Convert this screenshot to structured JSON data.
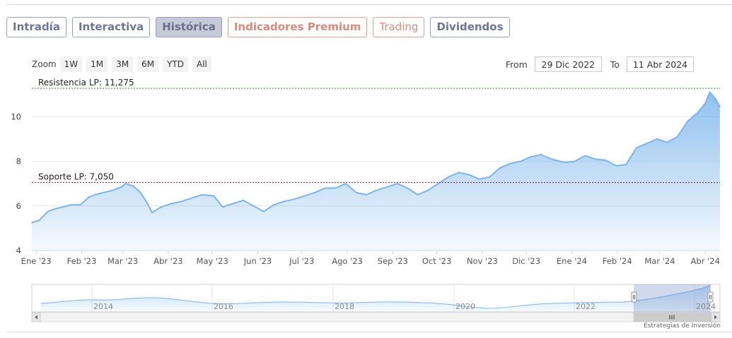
{
  "tabs": [
    {
      "label": "Intradía",
      "style": "normal"
    },
    {
      "label": "Interactiva",
      "style": "normal"
    },
    {
      "label": "Histórica",
      "style": "active"
    },
    {
      "label": "Indicadores Premium",
      "style": "premium"
    },
    {
      "label": "Trading",
      "style": "trading"
    },
    {
      "label": "Dividendos",
      "style": "dividendos"
    }
  ],
  "toolbar": {
    "zoom_label": "Zoom",
    "zoom_buttons": [
      "1W",
      "1M",
      "3M",
      "6M",
      "YTD",
      "All"
    ],
    "from_label": "From",
    "from_value": "29 Dic 2022",
    "to_label": "To",
    "to_value": "11 Abr 2024"
  },
  "credits": "Estrategias de Inversión",
  "colors": {
    "line": "#7cb5ec",
    "resistance": "#2e8b3d",
    "support": "#8b1a1a",
    "tab_premium": "#d88a7e"
  },
  "chart_data": {
    "type": "area",
    "xlabel": "",
    "ylabel": "",
    "ylim": [
      4,
      11.5
    ],
    "yticks": [
      4,
      6,
      8,
      10
    ],
    "xlim": [
      "2022-12-29",
      "2024-04-11"
    ],
    "x_tick_labels": [
      "Ene '23",
      "Feb '23",
      "Mar '23",
      "Abr '23",
      "May '23",
      "Jun '23",
      "Jul '23",
      "Ago '23",
      "Sep '23",
      "Oct '23",
      "Nov '23",
      "Dic '23",
      "Ene '24",
      "Feb '24",
      "Mar '24",
      "Abr '24"
    ],
    "grid": true,
    "annotations": [
      {
        "label": "Resistencia LP: 11,275",
        "y": 11.275,
        "kind": "resistance"
      },
      {
        "label": "Soporte LP: 7,050",
        "y": 7.05,
        "kind": "support"
      }
    ],
    "x": [
      "2022-12-29",
      "2023-01-03",
      "2023-01-09",
      "2023-01-13",
      "2023-01-19",
      "2023-01-25",
      "2023-01-31",
      "2023-02-06",
      "2023-02-10",
      "2023-02-16",
      "2023-02-22",
      "2023-02-28",
      "2023-03-03",
      "2023-03-08",
      "2023-03-13",
      "2023-03-17",
      "2023-03-21",
      "2023-03-27",
      "2023-04-03",
      "2023-04-10",
      "2023-04-17",
      "2023-04-24",
      "2023-05-02",
      "2023-05-08",
      "2023-05-15",
      "2023-05-22",
      "2023-05-29",
      "2023-06-05",
      "2023-06-12",
      "2023-06-19",
      "2023-06-26",
      "2023-07-03",
      "2023-07-10",
      "2023-07-17",
      "2023-07-24",
      "2023-07-31",
      "2023-08-07",
      "2023-08-14",
      "2023-08-21",
      "2023-08-28",
      "2023-09-04",
      "2023-09-11",
      "2023-09-18",
      "2023-09-25",
      "2023-10-02",
      "2023-10-09",
      "2023-10-16",
      "2023-10-23",
      "2023-10-30",
      "2023-11-06",
      "2023-11-13",
      "2023-11-20",
      "2023-11-27",
      "2023-12-04",
      "2023-12-11",
      "2023-12-18",
      "2023-12-27",
      "2024-01-03",
      "2024-01-10",
      "2024-01-17",
      "2024-01-24",
      "2024-01-31",
      "2024-02-07",
      "2024-02-14",
      "2024-02-21",
      "2024-02-28",
      "2024-03-06",
      "2024-03-13",
      "2024-03-20",
      "2024-03-27",
      "2024-04-01",
      "2024-04-04",
      "2024-04-08",
      "2024-04-11"
    ],
    "series": [
      {
        "values": [
          5.25,
          5.35,
          5.75,
          5.85,
          5.95,
          6.05,
          6.05,
          6.4,
          6.5,
          6.6,
          6.7,
          6.85,
          7.0,
          6.9,
          6.6,
          6.2,
          5.7,
          5.95,
          6.1,
          6.2,
          6.35,
          6.5,
          6.45,
          5.95,
          6.1,
          6.25,
          6.0,
          5.75,
          6.05,
          6.2,
          6.3,
          6.45,
          6.6,
          6.8,
          6.8,
          7.0,
          6.6,
          6.5,
          6.7,
          6.85,
          7.0,
          6.8,
          6.5,
          6.7,
          7.0,
          7.3,
          7.5,
          7.4,
          7.2,
          7.3,
          7.7,
          7.9,
          8.0,
          8.2,
          8.3,
          8.1,
          7.95,
          8.0,
          8.25,
          8.1,
          8.05,
          7.8,
          7.85,
          8.6,
          8.8,
          9.0,
          8.85,
          9.1,
          9.8,
          10.2,
          10.6,
          11.1,
          10.8,
          10.45
        ]
      }
    ]
  }
}
